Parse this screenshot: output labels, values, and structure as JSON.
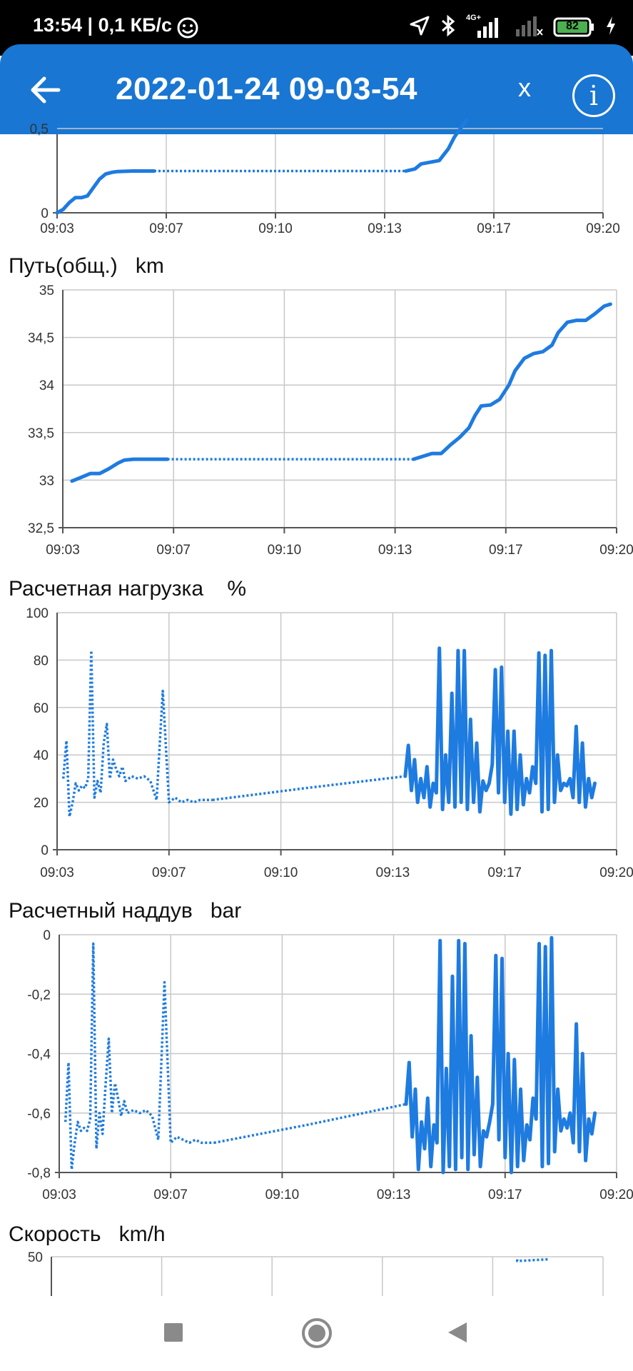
{
  "status_bar": {
    "time_speed": "13:54 | 0,1 КБ/с",
    "network": "4G+",
    "battery": "82"
  },
  "app_bar": {
    "title": "2022-01-24 09-03-54",
    "close_label": "x",
    "info_label": "i"
  },
  "sections": {
    "distance_total": {
      "name": "Путь(общ.)",
      "unit": "km"
    },
    "engine_load": {
      "name": "Расчетная нагрузка",
      "unit": "%"
    },
    "boost": {
      "name": "Расчетный наддув",
      "unit": "bar"
    },
    "speed": {
      "name": "Скорость",
      "unit": "km/h"
    }
  },
  "chart_data": [
    {
      "type": "line",
      "title": "",
      "x_ticks": [
        "09:03",
        "09:07",
        "09:10",
        "09:13",
        "09:17",
        "09:20"
      ],
      "y_ticks": [
        "0",
        "0,5"
      ],
      "ylim": [
        0,
        0.5
      ],
      "series": [
        {
          "x": [
            0,
            0.2,
            0.4,
            0.6,
            0.8,
            1.0,
            1.2,
            1.4,
            1.6,
            1.8,
            2.0,
            2.5,
            3.0,
            3.2
          ],
          "y": [
            0,
            0.02,
            0.06,
            0.09,
            0.09,
            0.1,
            0.15,
            0.2,
            0.23,
            0.24,
            0.245,
            0.248,
            0.248,
            0.248
          ]
        },
        {
          "x": [
            3.2,
            6.0,
            9.0,
            11.5
          ],
          "y": [
            0.248,
            0.248,
            0.248,
            0.248
          ],
          "dotted": true
        },
        {
          "x": [
            11.5,
            11.8,
            12.0,
            12.3,
            12.6,
            12.9,
            13.1,
            13.3,
            13.5
          ],
          "y": [
            0.248,
            0.26,
            0.29,
            0.3,
            0.31,
            0.38,
            0.45,
            0.5,
            0.55
          ]
        }
      ]
    },
    {
      "type": "line",
      "title": "Путь(общ.)",
      "x_ticks": [
        "09:03",
        "09:07",
        "09:10",
        "09:13",
        "09:17",
        "09:20"
      ],
      "y_ticks": [
        "32,5",
        "33",
        "33,5",
        "34",
        "34,5",
        "35"
      ],
      "ylim": [
        32.5,
        35
      ],
      "series": [
        {
          "x": [
            0.3,
            0.6,
            0.9,
            1.2,
            1.5,
            1.8,
            2.0,
            2.3,
            2.6,
            3.0,
            3.4
          ],
          "y": [
            32.99,
            33.03,
            33.07,
            33.07,
            33.12,
            33.18,
            33.21,
            33.22,
            33.22,
            33.22,
            33.22
          ]
        },
        {
          "x": [
            3.4,
            6.0,
            9.0,
            11.4
          ],
          "y": [
            33.22,
            33.22,
            33.22,
            33.22
          ],
          "dotted": true
        },
        {
          "x": [
            11.4,
            11.7,
            12.0,
            12.3,
            12.6,
            12.9,
            13.2,
            13.4,
            13.6,
            13.9,
            14.2,
            14.5,
            14.7,
            15.0,
            15.3,
            15.6,
            15.9,
            16.1,
            16.4,
            16.7,
            17.0,
            17.3,
            17.6,
            17.8
          ],
          "y": [
            33.22,
            33.25,
            33.28,
            33.28,
            33.37,
            33.45,
            33.55,
            33.68,
            33.78,
            33.79,
            33.85,
            34.0,
            34.15,
            34.28,
            34.33,
            34.35,
            34.42,
            34.55,
            34.66,
            34.68,
            34.68,
            34.75,
            34.83,
            34.85
          ]
        }
      ]
    },
    {
      "type": "line",
      "title": "Расчетная нагрузка",
      "x_ticks": [
        "09:03",
        "09:07",
        "09:10",
        "09:13",
        "09:17",
        "09:20"
      ],
      "y_ticks": [
        "0",
        "20",
        "40",
        "60",
        "80",
        "100"
      ],
      "ylim": [
        0,
        100
      ],
      "series": [
        {
          "x": [
            0.2,
            0.3,
            0.4,
            0.5,
            0.6,
            0.7,
            0.8,
            0.9,
            1.0,
            1.1,
            1.2,
            1.3,
            1.4,
            1.5,
            1.6,
            1.7,
            1.8,
            1.9,
            2.0,
            2.1,
            2.2,
            2.4,
            2.6,
            2.8,
            3.0,
            3.2,
            3.4,
            3.6,
            3.8,
            4.0,
            4.2,
            4.4,
            4.6,
            4.8,
            5.0
          ],
          "y": [
            30,
            46,
            14,
            20,
            28,
            25,
            27,
            26,
            30,
            84,
            22,
            29,
            24,
            45,
            53,
            30,
            38,
            34,
            31,
            35,
            29,
            31,
            30,
            31,
            29,
            21,
            67,
            20,
            22,
            20,
            21,
            20,
            21,
            21,
            21
          ],
          "dotted": true
        },
        {
          "x": [
            5.0,
            8.0,
            11.2
          ],
          "y": [
            21,
            26,
            31
          ],
          "dotted": true
        },
        {
          "x": [
            11.2,
            11.3,
            11.4,
            11.5,
            11.6,
            11.7,
            11.8,
            11.9,
            12.0,
            12.1,
            12.2,
            12.3,
            12.4,
            12.5,
            12.6,
            12.7,
            12.8,
            12.9,
            13.0,
            13.1,
            13.2,
            13.3,
            13.4,
            13.5,
            13.6,
            13.7,
            13.8,
            13.9,
            14.0,
            14.1,
            14.2,
            14.3,
            14.4,
            14.5,
            14.6,
            14.7,
            14.8,
            14.9,
            15.0,
            15.1,
            15.2,
            15.3,
            15.4,
            15.5,
            15.6,
            15.7,
            15.8,
            15.9,
            16.0,
            16.1,
            16.2,
            16.3,
            16.4,
            16.5,
            16.6,
            16.7,
            16.8,
            16.9,
            17.0,
            17.1,
            17.2,
            17.3
          ],
          "y": [
            31,
            44,
            25,
            38,
            20,
            30,
            22,
            35,
            18,
            28,
            24,
            85,
            17,
            40,
            20,
            66,
            18,
            84,
            20,
            84,
            17,
            55,
            20,
            45,
            16,
            29,
            25,
            28,
            36,
            76,
            24,
            77,
            20,
            50,
            15,
            50,
            17,
            40,
            19,
            30,
            24,
            35,
            28,
            83,
            16,
            82,
            17,
            84,
            20,
            40,
            25,
            28,
            27,
            30,
            22,
            52,
            20,
            45,
            18,
            30,
            22,
            28
          ]
        }
      ]
    },
    {
      "type": "line",
      "title": "Расчетный наддув",
      "x_ticks": [
        "09:03",
        "09:07",
        "09:10",
        "09:13",
        "09:17",
        "09:20"
      ],
      "y_ticks": [
        "-0,8",
        "-0,6",
        "-0,4",
        "-0,2",
        "0"
      ],
      "ylim": [
        -0.8,
        0
      ],
      "series": [
        {
          "x": [
            0.2,
            0.3,
            0.4,
            0.5,
            0.6,
            0.7,
            0.8,
            0.9,
            1.0,
            1.1,
            1.2,
            1.3,
            1.4,
            1.5,
            1.6,
            1.7,
            1.8,
            1.9,
            2.0,
            2.1,
            2.2,
            2.4,
            2.6,
            2.8,
            3.0,
            3.2,
            3.4,
            3.6,
            3.8,
            4.0,
            4.2,
            4.4,
            4.6,
            4.8,
            5.0
          ],
          "y": [
            -0.63,
            -0.43,
            -0.79,
            -0.7,
            -0.63,
            -0.66,
            -0.65,
            -0.66,
            -0.62,
            -0.03,
            -0.72,
            -0.6,
            -0.67,
            -0.5,
            -0.35,
            -0.6,
            -0.5,
            -0.55,
            -0.61,
            -0.56,
            -0.6,
            -0.59,
            -0.6,
            -0.59,
            -0.61,
            -0.69,
            -0.16,
            -0.7,
            -0.68,
            -0.69,
            -0.7,
            -0.69,
            -0.7,
            -0.7,
            -0.7
          ],
          "dotted": true
        },
        {
          "x": [
            5.0,
            8.0,
            11.2
          ],
          "y": [
            -0.7,
            -0.64,
            -0.57
          ],
          "dotted": true
        },
        {
          "x": [
            11.2,
            11.3,
            11.4,
            11.5,
            11.6,
            11.7,
            11.8,
            11.9,
            12.0,
            12.1,
            12.2,
            12.3,
            12.4,
            12.5,
            12.6,
            12.7,
            12.8,
            12.9,
            13.0,
            13.1,
            13.2,
            13.3,
            13.4,
            13.5,
            13.6,
            13.7,
            13.8,
            13.9,
            14.0,
            14.1,
            14.2,
            14.3,
            14.4,
            14.5,
            14.6,
            14.7,
            14.8,
            14.9,
            15.0,
            15.1,
            15.2,
            15.3,
            15.4,
            15.5,
            15.6,
            15.7,
            15.8,
            15.9,
            16.0,
            16.1,
            16.2,
            16.3,
            16.4,
            16.5,
            16.6,
            16.7,
            16.8,
            16.9,
            17.0,
            17.1,
            17.2,
            17.3
          ],
          "y": [
            -0.57,
            -0.43,
            -0.68,
            -0.52,
            -0.79,
            -0.63,
            -0.72,
            -0.55,
            -0.78,
            -0.64,
            -0.7,
            -0.02,
            -0.8,
            -0.45,
            -0.78,
            -0.14,
            -0.79,
            -0.02,
            -0.75,
            -0.03,
            -0.79,
            -0.34,
            -0.74,
            -0.48,
            -0.78,
            -0.66,
            -0.68,
            -0.63,
            -0.57,
            -0.07,
            -0.69,
            -0.08,
            -0.75,
            -0.4,
            -0.8,
            -0.42,
            -0.78,
            -0.52,
            -0.76,
            -0.64,
            -0.69,
            -0.55,
            -0.62,
            -0.03,
            -0.78,
            -0.04,
            -0.77,
            -0.01,
            -0.73,
            -0.52,
            -0.66,
            -0.62,
            -0.65,
            -0.6,
            -0.7,
            -0.3,
            -0.73,
            -0.4,
            -0.76,
            -0.62,
            -0.67,
            -0.6
          ]
        }
      ]
    },
    {
      "type": "line",
      "title": "Скорость",
      "x_ticks": [],
      "y_ticks": [
        "50"
      ],
      "ylim": [
        0,
        50
      ],
      "series": [
        {
          "x": [
            15.2,
            15.2,
            16.2,
            16.2
          ],
          "y": [
            47,
            45,
            47,
            45
          ],
          "dotted": true
        }
      ]
    }
  ]
}
